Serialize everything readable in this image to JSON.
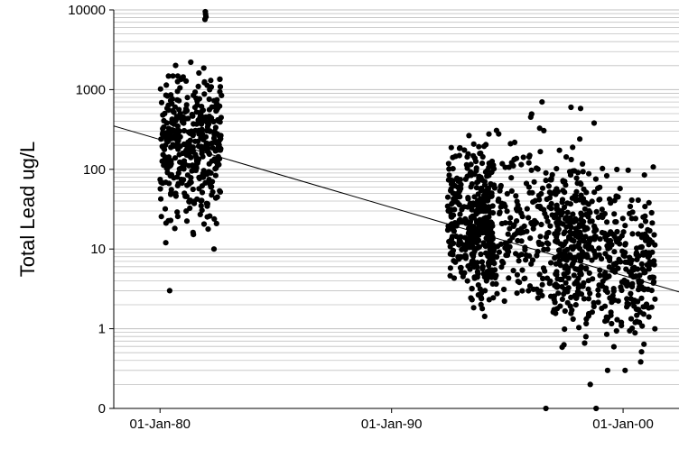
{
  "chart_data": {
    "type": "scatter",
    "title": "",
    "ylabel": "Total Lead ug/L",
    "xlabel": "",
    "y_scale": "log",
    "y_tick_labels": [
      "0",
      "1",
      "10",
      "100",
      "1000",
      "10000"
    ],
    "y_tick_values": [
      0.1,
      1,
      10,
      100,
      1000,
      10000
    ],
    "x_tick_labels": [
      "01-Jan-80",
      "01-Jan-90",
      "01-Jan-00"
    ],
    "x_tick_values": [
      "1980-01-01",
      "1990-01-01",
      "2000-01-01"
    ],
    "xlim": [
      "1978-01-01",
      "2002-06-01"
    ],
    "ylim": [
      0.1,
      10000
    ],
    "grid": true,
    "legend": "none",
    "colors": {
      "points": "#000000",
      "grid": "#c0c0c0",
      "trend": "#000000"
    },
    "trendline": {
      "x": [
        "1978-01-01",
        "2002-06-01"
      ],
      "y": [
        350,
        2.9
      ]
    },
    "series": [
      {
        "clusters": [
          {
            "x_start": "1980-01-01",
            "x_end": "1982-09-01",
            "y_min": 10,
            "y_max": 3200,
            "y_center": 200,
            "count": 400
          },
          {
            "x_start": "1992-06-01",
            "x_end": "1994-06-01",
            "y_min": 1,
            "y_max": 400,
            "y_center": 20,
            "count": 300
          },
          {
            "x_start": "1993-06-01",
            "x_end": "1998-06-01",
            "y_min": 0.5,
            "y_max": 700,
            "y_center": 20,
            "count": 400
          },
          {
            "x_start": "1997-01-01",
            "x_end": "2001-06-01",
            "y_min": 0.3,
            "y_max": 200,
            "y_center": 7,
            "count": 450
          }
        ],
        "points": [
          {
            "x": "1981-12-15",
            "y": 9500
          },
          {
            "x": "1981-12-20",
            "y": 8800
          },
          {
            "x": "1981-12-25",
            "y": 8200
          },
          {
            "x": "1981-12-10",
            "y": 7600
          },
          {
            "x": "1980-06-01",
            "y": 3
          },
          {
            "x": "1980-04-01",
            "y": 12
          },
          {
            "x": "1982-05-01",
            "y": 10
          },
          {
            "x": "1996-07-01",
            "y": 700
          },
          {
            "x": "1997-10-01",
            "y": 600
          },
          {
            "x": "1998-03-01",
            "y": 580
          },
          {
            "x": "1998-10-01",
            "y": 380
          },
          {
            "x": "1996-09-01",
            "y": 0.1
          },
          {
            "x": "1998-11-01",
            "y": 0.1
          },
          {
            "x": "1998-08-01",
            "y": 0.2
          },
          {
            "x": "2000-02-01",
            "y": 0.3
          },
          {
            "x": "1999-05-01",
            "y": 0.3
          }
        ]
      }
    ]
  }
}
